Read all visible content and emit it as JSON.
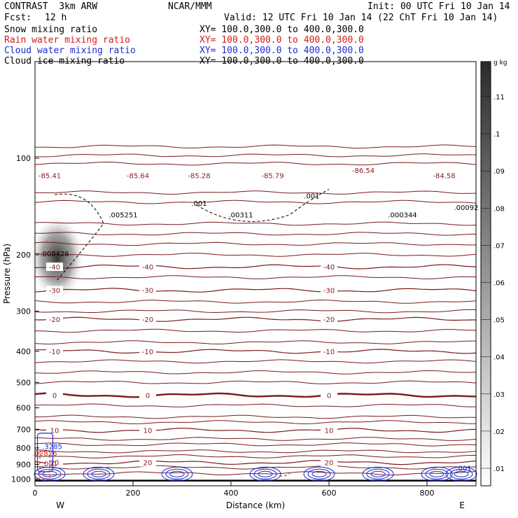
{
  "header": {
    "model": "CONTRAST  3km ARW",
    "center": "NCAR/MMM",
    "init": "Init: 00 UTC Fri 10 Jan 14",
    "fcst_label": "Fcst:",
    "fcst_value": "12 h",
    "valid": "Valid: 12 UTC Fri 10 Jan 14 (22 ChT Fri 10 Jan 14)",
    "fields": [
      {
        "name": "Snow mixing ratio",
        "xy": "XY= 100.0,300.0 to 400.0,300.0",
        "color": "#000000"
      },
      {
        "name": "Rain water mixing ratio",
        "xy": "XY= 100.0,300.0 to 400.0,300.0",
        "color": "#d01c1c"
      },
      {
        "name": "Cloud water mixing ratio",
        "xy": "XY= 100.0,300.0 to 400.0,300.0",
        "color": "#1c2ed0"
      },
      {
        "name": "Cloud ice mixing ratio",
        "xy": "XY= 100.0,300.0 to 400.0,300.0",
        "color": "#000000"
      }
    ]
  },
  "chart_data": {
    "type": "contour",
    "xlabel": "Distance (km)",
    "ylabel": "Pressure (hPa)",
    "x_ticks": [
      "0",
      "200",
      "400",
      "600",
      "800"
    ],
    "x_tick_values": [
      0,
      200,
      400,
      600,
      800
    ],
    "xlim": [
      0,
      900
    ],
    "y_ticks": [
      "100",
      "200",
      "300",
      "400",
      "500",
      "600",
      "700",
      "800",
      "900",
      "1000"
    ],
    "y_tick_values": [
      100,
      200,
      300,
      400,
      500,
      600,
      700,
      800,
      900,
      1000
    ],
    "ylim": [
      1050,
      50
    ],
    "y_scale": "log",
    "west_label": "W",
    "east_label": "E",
    "temperature_contours_c": [
      {
        "value": -40,
        "label": "-40",
        "pressure": 218
      },
      {
        "value": -30,
        "label": "-30",
        "pressure": 258
      },
      {
        "value": -20,
        "label": "-20",
        "pressure": 318
      },
      {
        "value": -10,
        "label": "-10",
        "pressure": 400
      },
      {
        "value": 0,
        "label": "0",
        "pressure": 548
      },
      {
        "value": 10,
        "label": "10",
        "pressure": 705
      },
      {
        "value": 20,
        "label": "20",
        "pressure": 888
      }
    ],
    "upper_labels": [
      {
        "text": "-85.41",
        "x": 30,
        "pressure": 113
      },
      {
        "text": "-85.64",
        "x": 210,
        "pressure": 113
      },
      {
        "text": "-85.28",
        "x": 335,
        "pressure": 113
      },
      {
        "text": "-85.79",
        "x": 485,
        "pressure": 113
      },
      {
        "text": "-86.54",
        "x": 670,
        "pressure": 109
      },
      {
        "text": "-84.58",
        "x": 835,
        "pressure": 113
      }
    ],
    "extrema": [
      {
        "text": ".005251",
        "x": 180,
        "pressure": 150
      },
      {
        "text": ".00311",
        "x": 420,
        "pressure": 150
      },
      {
        "text": ".000344",
        "x": 750,
        "pressure": 150
      },
      {
        "text": ".00092",
        "x": 880,
        "pressure": 142
      },
      {
        "text": ".008426",
        "x": 40,
        "pressure": 198
      },
      {
        "text": ".001",
        "x": 335,
        "pressure": 138
      },
      {
        "text": ".001",
        "x": 565,
        "pressure": 131
      }
    ],
    "cloud_water_labels": [
      {
        "text": ".3285",
        "x": 35,
        "pressure": 790
      },
      {
        "text": ".001",
        "x": 875,
        "pressure": 923
      }
    ],
    "rain_labels": [
      {
        "text": ".02826",
        "x": 20,
        "pressure": 830
      },
      {
        "text": ".001",
        "x": 30,
        "pressure": 895
      }
    ],
    "colorbar": {
      "unit": "g kg",
      "labels": [
        ".11",
        ".1",
        ".09",
        ".08",
        ".07",
        ".06",
        ".05",
        ".04",
        ".03",
        ".02",
        ".01"
      ]
    }
  }
}
